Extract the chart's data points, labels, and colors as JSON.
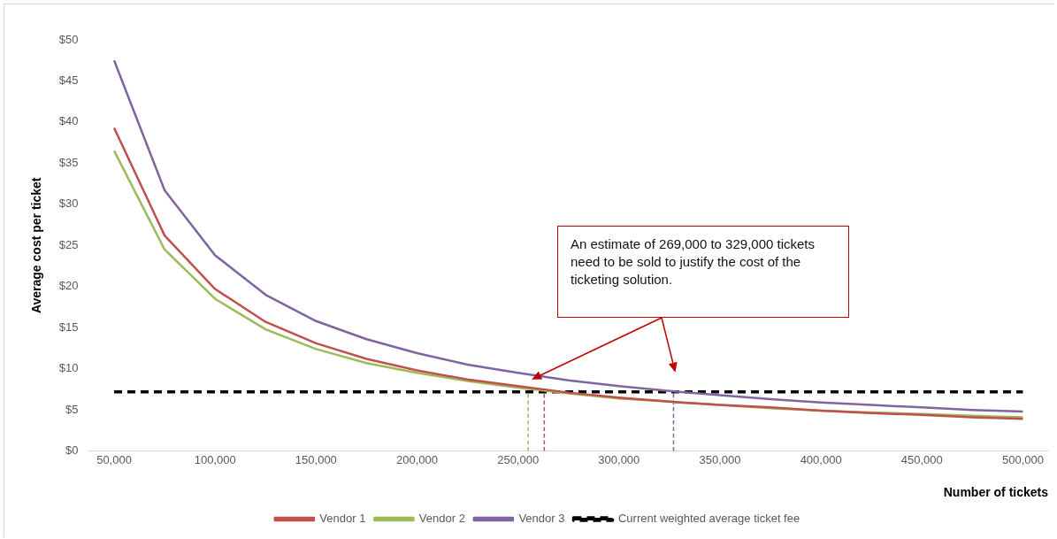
{
  "chart_data": {
    "type": "line",
    "xlabel": "Number of tickets",
    "ylabel": "Average cost per ticket",
    "x": [
      50000,
      75000,
      100000,
      125000,
      150000,
      175000,
      200000,
      225000,
      250000,
      275000,
      300000,
      325000,
      350000,
      375000,
      400000,
      425000,
      450000,
      475000,
      500000
    ],
    "series": [
      {
        "name": "Vendor 1",
        "color": "#c0504d",
        "values": [
          39.3,
          26.2,
          19.7,
          15.7,
          13.1,
          11.2,
          9.8,
          8.7,
          7.9,
          7.1,
          6.5,
          6.0,
          5.6,
          5.3,
          4.9,
          4.6,
          4.4,
          4.1,
          3.9
        ]
      },
      {
        "name": "Vendor 2",
        "color": "#9bbb59",
        "values": [
          36.5,
          24.5,
          18.5,
          14.8,
          12.4,
          10.7,
          9.5,
          8.5,
          7.7,
          7.0,
          6.4,
          6.0,
          5.6,
          5.2,
          4.9,
          4.7,
          4.5,
          4.3,
          4.1
        ]
      },
      {
        "name": "Vendor 3",
        "color": "#8064a2",
        "values": [
          47.5,
          31.7,
          23.8,
          19.0,
          15.8,
          13.6,
          11.9,
          10.5,
          9.5,
          8.6,
          7.9,
          7.3,
          6.8,
          6.3,
          5.9,
          5.6,
          5.3,
          5.0,
          4.8
        ]
      },
      {
        "name": "Current weighted average ticket fee",
        "color": "#000000",
        "line_style": "dashed",
        "x": [
          50000,
          500000
        ],
        "values": [
          7.2,
          7.2
        ]
      }
    ],
    "ref_lines": [
      {
        "axis": "x",
        "value": 255000,
        "color": "#9bbb59",
        "line_style": "dashed"
      },
      {
        "axis": "x",
        "value": 263000,
        "color": "#c0504d",
        "line_style": "dashed"
      },
      {
        "axis": "x",
        "value": 327000,
        "color": "#8064a2",
        "line_style": "dashed"
      }
    ],
    "annotations": [
      "An estimate of 269,000 to 329,000 tickets need to be sold to justify the cost of the ticketing solution."
    ],
    "xlim": [
      37500,
      512500
    ],
    "xticks": [
      {
        "value": 50000,
        "label": "50,000"
      },
      {
        "value": 100000,
        "label": "100,000"
      },
      {
        "value": 150000,
        "label": "150,000"
      },
      {
        "value": 200000,
        "label": "200,000"
      },
      {
        "value": 250000,
        "label": "250,000"
      },
      {
        "value": 300000,
        "label": "300,000"
      },
      {
        "value": 350000,
        "label": "350,000"
      },
      {
        "value": 400000,
        "label": "400,000"
      },
      {
        "value": 450000,
        "label": "450,000"
      },
      {
        "value": 500000,
        "label": "500,000"
      }
    ],
    "ylim": [
      0,
      50
    ],
    "yticks": [
      {
        "value": 0,
        "label": "$0"
      },
      {
        "value": 5,
        "label": "$5"
      },
      {
        "value": 10,
        "label": "$10"
      },
      {
        "value": 15,
        "label": "$15"
      },
      {
        "value": 20,
        "label": "$20"
      },
      {
        "value": 25,
        "label": "$25"
      },
      {
        "value": 30,
        "label": "$30"
      },
      {
        "value": 35,
        "label": "$35"
      },
      {
        "value": 40,
        "label": "$40"
      },
      {
        "value": 45,
        "label": "$45"
      },
      {
        "value": 50,
        "label": "$50"
      }
    ],
    "grid": false,
    "legend": "bottom",
    "marker": "none",
    "line_style": "solid"
  }
}
